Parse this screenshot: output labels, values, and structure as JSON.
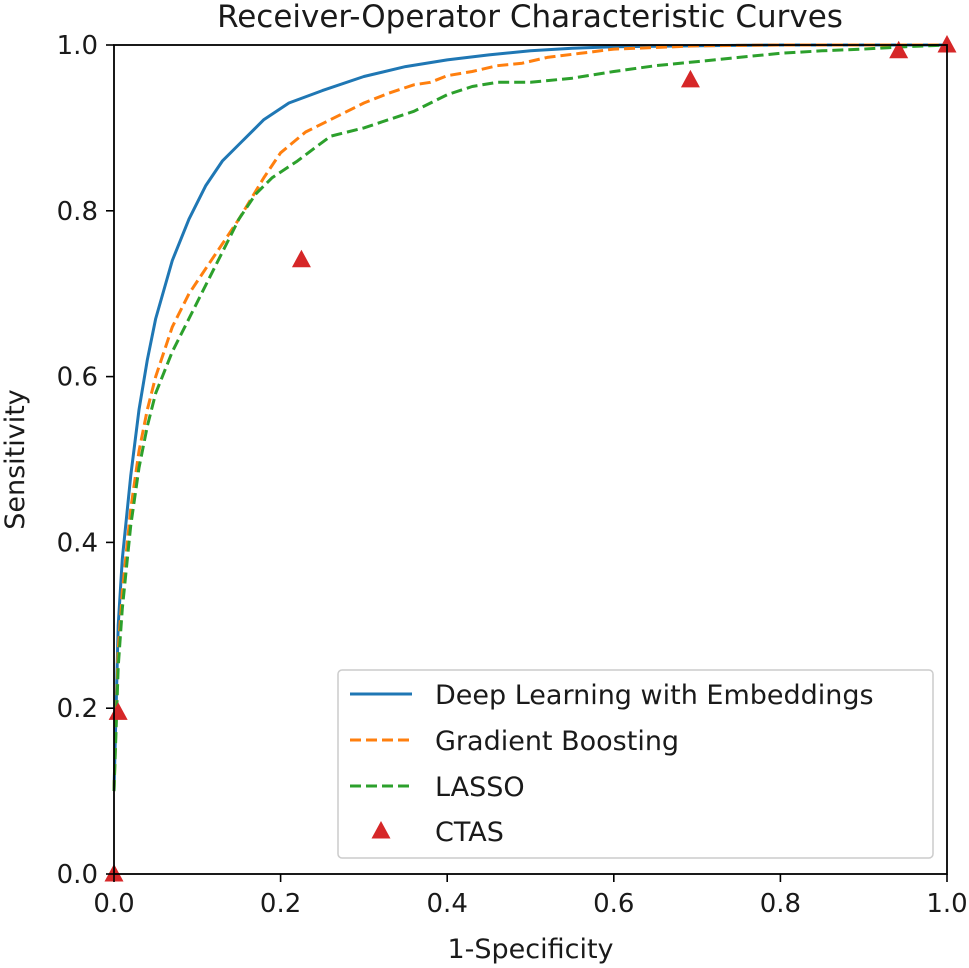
{
  "chart_data": {
    "type": "line",
    "title": "Receiver-Operator Characteristic Curves",
    "xlabel": "1-Specificity",
    "ylabel": "Sensitivity",
    "xlim": [
      0.0,
      1.0
    ],
    "ylim": [
      0.0,
      1.0
    ],
    "xticks": [
      "0.0",
      "0.2",
      "0.4",
      "0.6",
      "0.8",
      "1.0"
    ],
    "yticks": [
      "0.0",
      "0.2",
      "0.4",
      "0.6",
      "0.8",
      "1.0"
    ],
    "legend_position": "lower-right",
    "series": [
      {
        "name": "Deep Learning with Embeddings",
        "style": "solid",
        "color": "#1f77b4",
        "x": [
          0.0,
          0.005,
          0.01,
          0.02,
          0.03,
          0.04,
          0.05,
          0.07,
          0.09,
          0.11,
          0.13,
          0.15,
          0.18,
          0.21,
          0.25,
          0.3,
          0.35,
          0.4,
          0.45,
          0.5,
          0.55,
          0.6,
          0.7,
          0.8,
          0.9,
          1.0
        ],
        "y": [
          0.1,
          0.3,
          0.38,
          0.48,
          0.56,
          0.62,
          0.67,
          0.74,
          0.79,
          0.83,
          0.86,
          0.88,
          0.91,
          0.93,
          0.945,
          0.962,
          0.974,
          0.982,
          0.988,
          0.993,
          0.996,
          0.998,
          0.999,
          1.0,
          1.0,
          1.0
        ]
      },
      {
        "name": "Gradient Boosting",
        "style": "dashed",
        "color": "#ff7f0e",
        "x": [
          0.0,
          0.005,
          0.01,
          0.02,
          0.03,
          0.04,
          0.05,
          0.07,
          0.09,
          0.11,
          0.13,
          0.15,
          0.18,
          0.2,
          0.23,
          0.26,
          0.3,
          0.33,
          0.36,
          0.38,
          0.4,
          0.43,
          0.46,
          0.49,
          0.52,
          0.56,
          0.6,
          0.65,
          0.7,
          0.8,
          0.9,
          1.0
        ],
        "y": [
          0.1,
          0.27,
          0.34,
          0.44,
          0.51,
          0.56,
          0.6,
          0.66,
          0.7,
          0.73,
          0.76,
          0.79,
          0.84,
          0.87,
          0.895,
          0.91,
          0.93,
          0.942,
          0.952,
          0.955,
          0.963,
          0.968,
          0.975,
          0.978,
          0.985,
          0.99,
          0.995,
          0.997,
          0.999,
          1.0,
          1.0,
          1.0
        ]
      },
      {
        "name": "LASSO",
        "style": "dashed",
        "color": "#2ca02c",
        "x": [
          0.0,
          0.005,
          0.01,
          0.02,
          0.03,
          0.04,
          0.05,
          0.07,
          0.09,
          0.11,
          0.13,
          0.15,
          0.17,
          0.19,
          0.22,
          0.24,
          0.26,
          0.3,
          0.33,
          0.36,
          0.38,
          0.4,
          0.43,
          0.46,
          0.5,
          0.55,
          0.6,
          0.65,
          0.7,
          0.75,
          0.8,
          0.85,
          0.9,
          0.95,
          1.0
        ],
        "y": [
          0.1,
          0.25,
          0.32,
          0.42,
          0.49,
          0.54,
          0.58,
          0.63,
          0.67,
          0.71,
          0.75,
          0.79,
          0.82,
          0.84,
          0.86,
          0.875,
          0.89,
          0.9,
          0.91,
          0.92,
          0.93,
          0.94,
          0.95,
          0.955,
          0.955,
          0.96,
          0.968,
          0.975,
          0.98,
          0.985,
          0.99,
          0.993,
          0.995,
          0.998,
          1.0
        ]
      }
    ],
    "points": {
      "name": "CTAS",
      "marker": "triangle",
      "color": "#d62728",
      "x": [
        0.0,
        0.005,
        0.225,
        0.692,
        0.942,
        1.0
      ],
      "y": [
        0.0,
        0.195,
        0.741,
        0.958,
        0.993,
        1.0
      ]
    }
  }
}
